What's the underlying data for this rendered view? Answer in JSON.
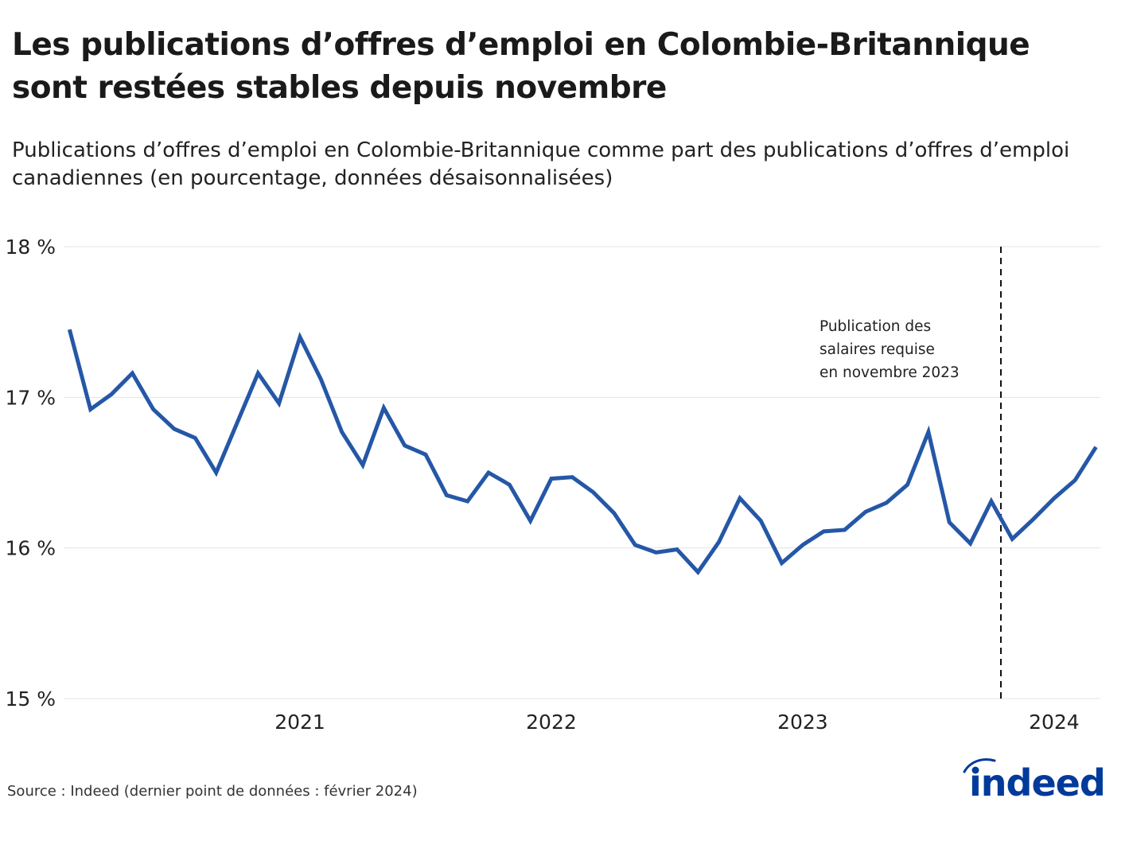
{
  "title": "Les publications d’offres d’emploi en Colombie-Britannique sont restées stables depuis novembre",
  "subtitle": "Publications d’offres d’emploi en Colombie-Britannique comme part des publications d’offres d’emploi canadiennes (en pourcentage, données désaisonnalisées)",
  "source": "Source : Indeed (dernier point de données : février 2024)",
  "logo": "indeed",
  "colors": {
    "line": "#2557a7",
    "grid": "#e3e3e3",
    "logo": "#003a9b"
  },
  "chart_data": {
    "type": "line",
    "title": "Les publications d’offres d’emploi en Colombie-Britannique sont restées stables depuis novembre",
    "xlabel": "",
    "ylabel": "",
    "ylim": [
      15,
      18
    ],
    "yticks": [
      15,
      16,
      17,
      18
    ],
    "ytick_labels": [
      "15 %",
      "16 %",
      "17 %",
      "18 %"
    ],
    "xticks": [
      "2021",
      "2022",
      "2023",
      "2024"
    ],
    "grid": "horizontal",
    "x": [
      "2020-01",
      "2020-02",
      "2020-03",
      "2020-04",
      "2020-05",
      "2020-06",
      "2020-07",
      "2020-08",
      "2020-09",
      "2020-10",
      "2020-11",
      "2020-12",
      "2021-01",
      "2021-02",
      "2021-03",
      "2021-04",
      "2021-05",
      "2021-06",
      "2021-07",
      "2021-08",
      "2021-09",
      "2021-10",
      "2021-11",
      "2021-12",
      "2022-01",
      "2022-02",
      "2022-03",
      "2022-04",
      "2022-05",
      "2022-06",
      "2022-07",
      "2022-08",
      "2022-09",
      "2022-10",
      "2022-11",
      "2022-12",
      "2023-01",
      "2023-02",
      "2023-03",
      "2023-04",
      "2023-05",
      "2023-06",
      "2023-07",
      "2023-08",
      "2023-09",
      "2023-10",
      "2023-11",
      "2023-12",
      "2024-01",
      "2024-02"
    ],
    "values": [
      17.45,
      16.92,
      17.02,
      17.16,
      16.92,
      16.79,
      16.73,
      16.5,
      16.83,
      17.16,
      16.96,
      17.4,
      17.12,
      16.77,
      16.55,
      16.93,
      16.68,
      16.62,
      16.35,
      16.31,
      16.5,
      16.42,
      16.18,
      16.46,
      16.47,
      16.37,
      16.23,
      16.02,
      15.97,
      15.99,
      15.84,
      16.04,
      16.33,
      16.18,
      15.9,
      16.02,
      16.11,
      16.12,
      16.24,
      16.3,
      16.42,
      16.77,
      16.17,
      16.03,
      16.31,
      16.06,
      16.19,
      16.33,
      16.45,
      16.67
    ],
    "annotation": {
      "text_lines": [
        "Publication des",
        "salaires requise",
        "en novembre 2023"
      ],
      "style": "dashed vertical line"
    }
  }
}
